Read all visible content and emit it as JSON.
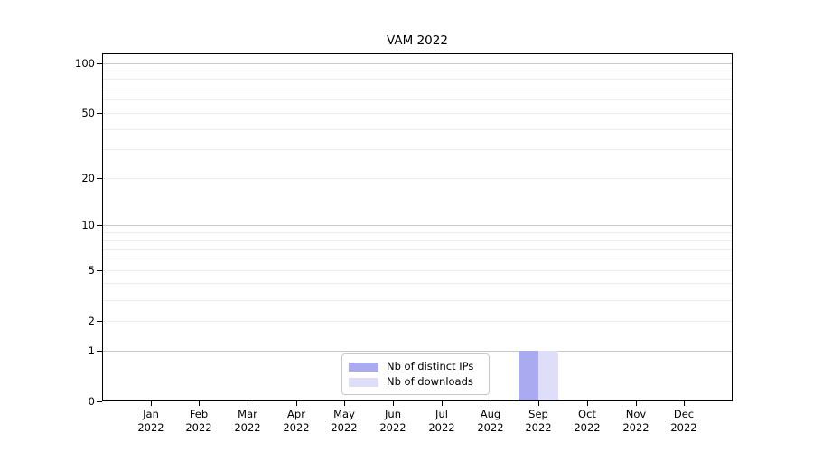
{
  "chart_data": {
    "type": "bar",
    "title": "VAM 2022",
    "categories": [
      "Jan",
      "Feb",
      "Mar",
      "Apr",
      "May",
      "Jun",
      "Jul",
      "Aug",
      "Sep",
      "Oct",
      "Nov",
      "Dec"
    ],
    "category_year": "2022",
    "series": [
      {
        "name": "Nb of distinct IPs",
        "color": "#aaaaf0",
        "values": [
          0,
          0,
          0,
          0,
          0,
          0,
          0,
          0,
          1,
          0,
          0,
          0
        ]
      },
      {
        "name": "Nb of downloads",
        "color": "#dedef8",
        "values": [
          0,
          0,
          0,
          0,
          0,
          0,
          0,
          0,
          1,
          0,
          0,
          0
        ]
      }
    ],
    "yscale": "log1p",
    "ylim": [
      0,
      114
    ],
    "yticks": [
      0,
      1,
      2,
      5,
      10,
      20,
      50,
      100
    ],
    "grid": {
      "major_values": [
        1,
        10,
        100
      ],
      "minor_values": [
        2,
        3,
        4,
        5,
        6,
        7,
        8,
        9,
        20,
        30,
        40,
        50,
        60,
        70,
        80,
        90
      ],
      "major_color": "#c6c6c6",
      "minor_color": "#ececec"
    },
    "legend": {
      "position": "lower-center-inside"
    },
    "axis_color": "#000000",
    "background_color": "#ffffff"
  }
}
